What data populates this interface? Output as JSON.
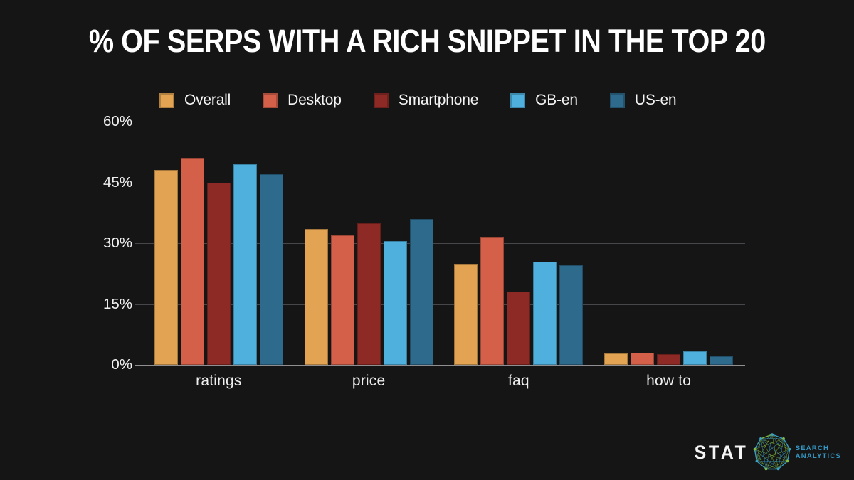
{
  "title": "% OF SERPS WITH A RICH SNIPPET IN THE TOP 20",
  "chart_data": {
    "type": "bar",
    "title": "% OF SERPS WITH A RICH SNIPPET IN THE TOP 20",
    "categories": [
      "ratings",
      "price",
      "faq",
      "how to"
    ],
    "series": [
      {
        "name": "Overall",
        "color": "#e2a452",
        "values": [
          48,
          33.5,
          25,
          2.8
        ]
      },
      {
        "name": "Desktop",
        "color": "#d5604a",
        "values": [
          51,
          32,
          31.5,
          3.0
        ]
      },
      {
        "name": "Smartphone",
        "color": "#8e2a26",
        "values": [
          45,
          35,
          18,
          2.7
        ]
      },
      {
        "name": "GB-en",
        "color": "#4fb0dd",
        "values": [
          49.5,
          30.5,
          25.5,
          3.4
        ]
      },
      {
        "name": "US-en",
        "color": "#2d6a8c",
        "values": [
          47,
          36,
          24.5,
          2.2
        ]
      }
    ],
    "xlabel": "",
    "ylabel": "",
    "ylim": [
      0,
      60
    ],
    "y_tick_values": [
      0,
      15,
      30,
      45,
      60
    ],
    "y_tick_labels": [
      "0%",
      "15%",
      "30%",
      "45%",
      "60%"
    ],
    "grid": true,
    "legend_position": "top"
  },
  "footer": {
    "logo_text": "STAT",
    "logo_sub1": "SEARCH",
    "logo_sub2": "ANALYTICS"
  },
  "colors": {
    "background": "#151515",
    "title_text": "#ffffff",
    "gridline": "#47474b",
    "baseline": "#8f8f92",
    "logo_blue": "#3496c2",
    "globe_green": "#86c140",
    "globe_blue": "#3ba2cc"
  }
}
